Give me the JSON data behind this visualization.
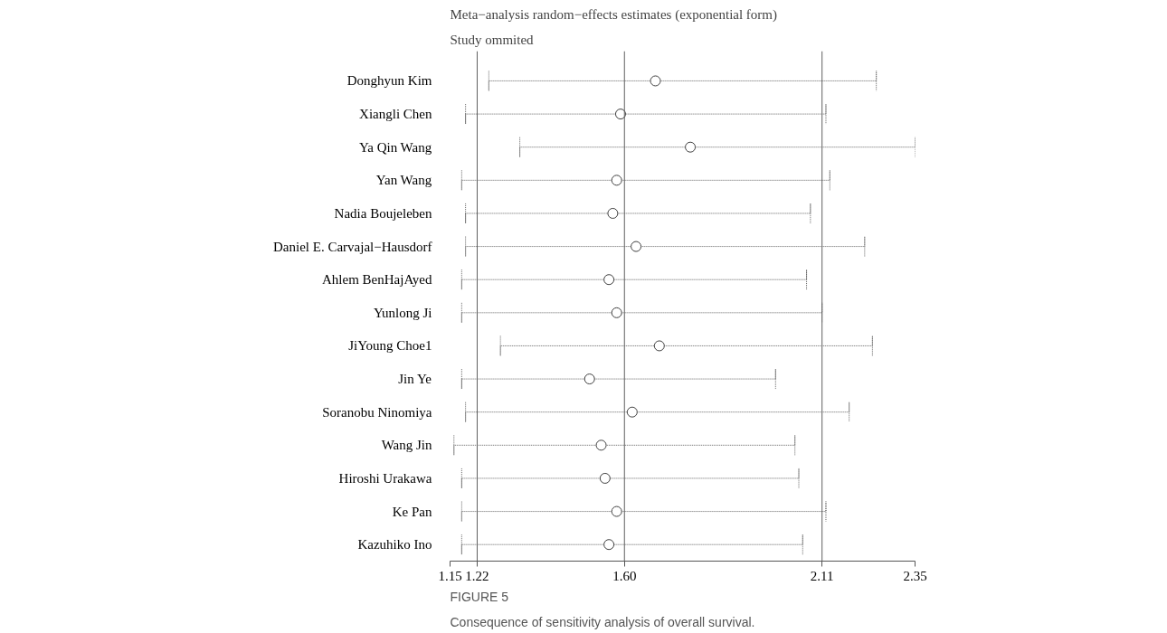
{
  "chart_data": {
    "type": "scatter",
    "title": "Meta−analysis random−effects estimates (exponential form)",
    "subtitle": "Study ommited",
    "categories": [
      "Donghyun Kim",
      "Xiangli Chen",
      "Ya Qin Wang",
      "Yan Wang",
      "Nadia Boujeleben",
      "Daniel E. Carvajal−Hausdorf",
      "Ahlem BenHajAyed",
      "Yunlong Ji",
      "JiYoung Choe1",
      "Jin Ye",
      "Soranobu Ninomiya",
      "Wang Jin",
      "Hiroshi Urakawa",
      "Ke Pan",
      "Kazuhiko Ino"
    ],
    "orientation": "horizontal",
    "values": [
      1.68,
      1.59,
      1.77,
      1.58,
      1.57,
      1.63,
      1.56,
      1.58,
      1.69,
      1.51,
      1.62,
      1.54,
      1.55,
      1.58,
      1.56
    ],
    "errors": [
      [
        1.25,
        2.25
      ],
      [
        1.19,
        2.12
      ],
      [
        1.33,
        2.35
      ],
      [
        1.18,
        2.13
      ],
      [
        1.19,
        2.08
      ],
      [
        1.19,
        2.22
      ],
      [
        1.18,
        2.07
      ],
      [
        1.18,
        2.11
      ],
      [
        1.28,
        2.24
      ],
      [
        1.18,
        1.99
      ],
      [
        1.19,
        2.18
      ],
      [
        1.16,
        2.04
      ],
      [
        1.18,
        2.05
      ],
      [
        1.18,
        2.12
      ],
      [
        1.18,
        2.06
      ]
    ],
    "color": "#404040",
    "marker": "circle",
    "grid": false,
    "xlim": [
      1.15,
      2.35
    ],
    "xticks": [
      1.15,
      1.22,
      {
        "value": 1.6,
        "label": "1.60"
      },
      2.11,
      2.35
    ],
    "ref_lines": [
      {
        "axis": "x",
        "value": 1.22,
        "color": "#606060"
      },
      {
        "axis": "x",
        "value": 1.6,
        "color": "#606060"
      },
      {
        "axis": "x",
        "value": 2.11,
        "color": "#606060"
      }
    ],
    "annotations": [
      "FIGURE 5",
      "Consequence of sensitivity analysis of overall survival."
    ]
  }
}
